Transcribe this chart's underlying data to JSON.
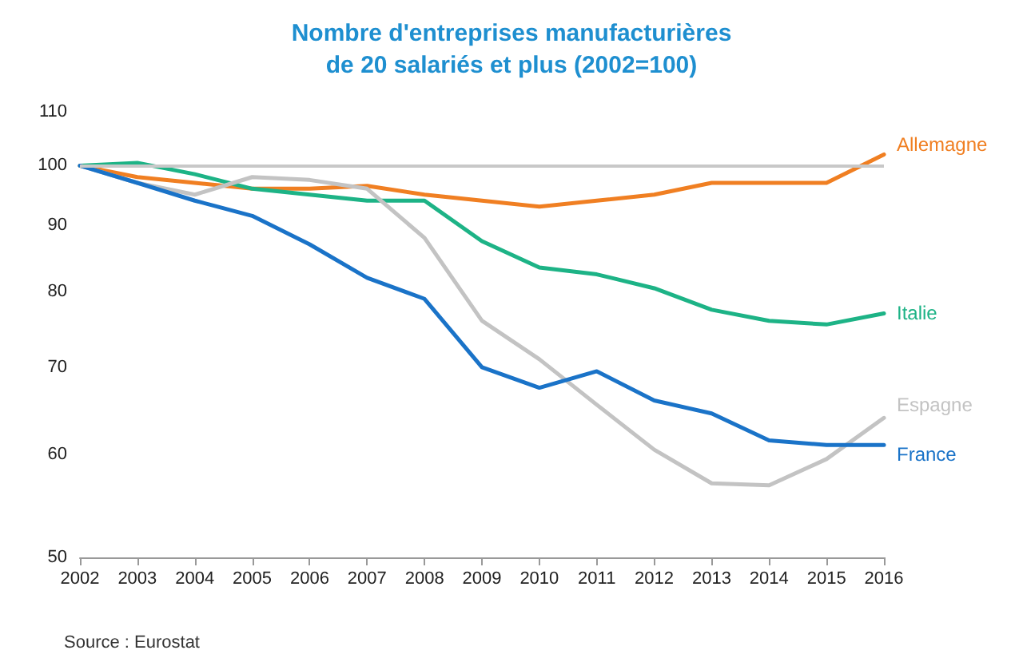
{
  "chart_data": {
    "type": "line",
    "title": "Nombre d'entreprises manufacturières\nde 20 salariés et plus (2002=100)",
    "x": [
      2002,
      2003,
      2004,
      2005,
      2006,
      2007,
      2008,
      2009,
      2010,
      2011,
      2012,
      2013,
      2014,
      2015,
      2016
    ],
    "xlim": [
      2002,
      2016
    ],
    "xticks": [
      2002,
      2003,
      2004,
      2005,
      2006,
      2007,
      2008,
      2009,
      2010,
      2011,
      2012,
      2013,
      2014,
      2015,
      2016
    ],
    "ylim": [
      50,
      110
    ],
    "yticks": [
      50,
      60,
      70,
      80,
      90,
      100,
      110
    ],
    "log": true,
    "grid": false,
    "legend": false,
    "marker": "none",
    "line_style": "solid",
    "series": [
      {
        "name": "Allemagne",
        "color": "#f07f22",
        "values": [
          100,
          98,
          97,
          96,
          96,
          96.5,
          95,
          94,
          93,
          94,
          95,
          97,
          97,
          97,
          102
        ]
      },
      {
        "name": "Italie",
        "color": "#1db386",
        "values": [
          100,
          100.5,
          98.5,
          96,
          95,
          94,
          94,
          87.5,
          83.5,
          82.5,
          80.5,
          77.5,
          76,
          75.5,
          77
        ]
      },
      {
        "name": "Espagne",
        "color": "#c3c3c3",
        "values": [
          100,
          97,
          95,
          98,
          97.5,
          96,
          88,
          76,
          71,
          65.5,
          60.5,
          57,
          56.8,
          59.5,
          64
        ]
      },
      {
        "name": "France",
        "color": "#1a73c8",
        "values": [
          100,
          97,
          94,
          91.5,
          87,
          82,
          79,
          70,
          67.5,
          69.5,
          66,
          64.5,
          61.5,
          61,
          61
        ]
      }
    ],
    "ref_lines": [
      {
        "axis": "y",
        "value": 100,
        "label": null,
        "color": "#c8c8c8"
      }
    ],
    "annotations": [
      "Source : Eurostat"
    ]
  }
}
